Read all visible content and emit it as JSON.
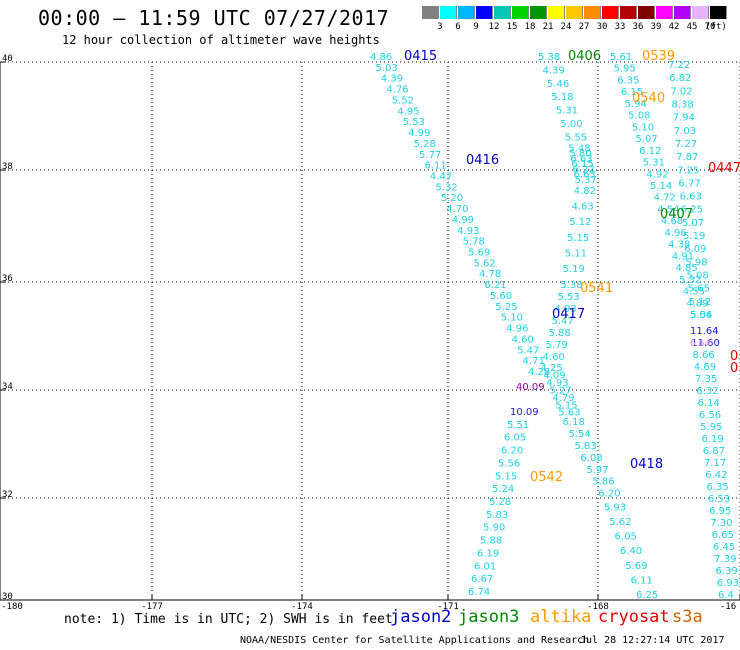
{
  "title": "00:00 – 11:59 UTC 07/27/2017",
  "subtitle": "12 hour collection of altimeter wave heights",
  "color_scale": {
    "labels": [
      "3",
      "6",
      "9",
      "12",
      "15",
      "18",
      "21",
      "24",
      "27",
      "30",
      "33",
      "36",
      "39",
      "42",
      "45",
      "70",
      "(ft)"
    ],
    "colors": [
      "#808080",
      "#00ffff",
      "#00b4ff",
      "#0000ff",
      "#00c8b4",
      "#00d200",
      "#009600",
      "#ffff00",
      "#ffc800",
      "#ff8c00",
      "#ff0000",
      "#b40000",
      "#800000",
      "#ff00ff",
      "#b400ff",
      "#e6b4ff",
      "#000000"
    ]
  },
  "axes": {
    "lat_labels": [
      "40",
      "38",
      "36",
      "34",
      "32",
      "30"
    ],
    "lon_labels": [
      "-180",
      "-177",
      "-174",
      "-171",
      "-168",
      "-16"
    ]
  },
  "tracks": [
    {
      "label": "0415",
      "color": "#0000cc",
      "values": [
        "4.86",
        "5.03",
        "4.39",
        "4.76",
        "5.52",
        "4.95",
        "5.53",
        "4.99",
        "5.28",
        "5.77",
        "6.11",
        "4.47",
        "5.32",
        "5.20",
        "4.70",
        "4.99",
        "4.93",
        "5.78",
        "5.69",
        "5.62",
        "4.78",
        "6.21",
        "5.60",
        "5.25",
        "5.10",
        "4.96",
        "4.60",
        "5.47",
        "4.71",
        "4.28"
      ]
    },
    {
      "label": "0416",
      "color": "#0000cc",
      "values": []
    },
    {
      "label": "0406",
      "color": "#008800",
      "values": [
        "5.38",
        "4.39",
        "5.46",
        "5.18",
        "5.31",
        "5.00",
        "5.55",
        "5.48",
        "5.80",
        "6.63",
        "6.15",
        "6.22",
        "6.63",
        "5.37",
        "4.82",
        "4.63",
        "5.12",
        "5.15",
        "5.11",
        "5.19",
        "5.38",
        "5.53",
        "4.93",
        "5.47",
        "5.88",
        "5.79",
        "4.60",
        "4.25",
        "4.09",
        "4.93",
        "5.27",
        "4.79",
        "5.15",
        "5.63",
        "6.18",
        "5.54",
        "5.83",
        "6.08",
        "5.97",
        "5.86",
        "6.20",
        "5.93",
        "5.62",
        "6.05",
        "6.40",
        "5.69",
        "6.11",
        "6.25"
      ]
    },
    {
      "label": "0407",
      "color": "#008800",
      "values": [
        "5.61",
        "5.95",
        "6.35",
        "6.15",
        "5.94",
        "5.08",
        "5.10",
        "5.07",
        "6.12",
        "5.31",
        "4.92",
        "5.14",
        "4.72",
        "4.54",
        "4.68",
        "4.96",
        "4.38",
        "4.91",
        "4.85",
        "5.32",
        "4.55",
        "4.89",
        "5.54"
      ]
    },
    {
      "label": "0539",
      "color": "#ff9900",
      "values": [
        "7.22",
        "6.82",
        "7.02",
        "8.38",
        "7.94",
        "7.03",
        "7.27",
        "7.87",
        "7.25",
        "6.77",
        "6.63",
        "6.25",
        "5.07",
        "5.19",
        "6.09",
        "5.98",
        "5.08",
        "5.65",
        "5.12",
        "5.06"
      ]
    },
    {
      "label": "0540",
      "color": "#ff9900",
      "values": []
    },
    {
      "label": "0417",
      "color": "#0000cc",
      "values": []
    },
    {
      "label": "0418",
      "color": "#0000cc",
      "values": [
        "10.09",
        "5.51",
        "6.05",
        "6.20",
        "5.56",
        "5.15",
        "5.24",
        "5.28",
        "5.83",
        "5.90",
        "5.88",
        "6.19",
        "6.01",
        "6.67",
        "6.74"
      ]
    },
    {
      "label": "0541",
      "color": "#ff9900",
      "values": []
    },
    {
      "label": "0542",
      "color": "#ff9900",
      "values": []
    },
    {
      "label": "0447",
      "color": "#ee0000",
      "values": []
    }
  ],
  "right_column": [
    "11.64",
    "11.60",
    "8.66",
    "4.69",
    "7.35",
    "6.32",
    "6.14",
    "6.56",
    "5.95",
    "6.19",
    "6.87",
    "7.17",
    "6.42",
    "6.35",
    "6.53",
    "6.95",
    "7.30",
    "6.65",
    "6.45",
    "7.39",
    "6.39",
    "6.93",
    "6.4"
  ],
  "special_values": {
    "purple_value": "40.09",
    "pink_value": "6.64"
  },
  "note": "note: 1) Time is in UTC; 2) SWH is in feet",
  "satellites": [
    {
      "name": "jason2",
      "color": "#0000cc"
    },
    {
      "name": "jason3",
      "color": "#008800"
    },
    {
      "name": "altika",
      "color": "#ff9900"
    },
    {
      "name": "cryosat",
      "color": "#ee0000"
    },
    {
      "name": "s3a",
      "color": "#cc6600"
    }
  ],
  "credit": "NOAA/NESDIS Center for Satellite Applications and Research",
  "timestamp": "Jul 28 12:27:14 UTC 2017"
}
